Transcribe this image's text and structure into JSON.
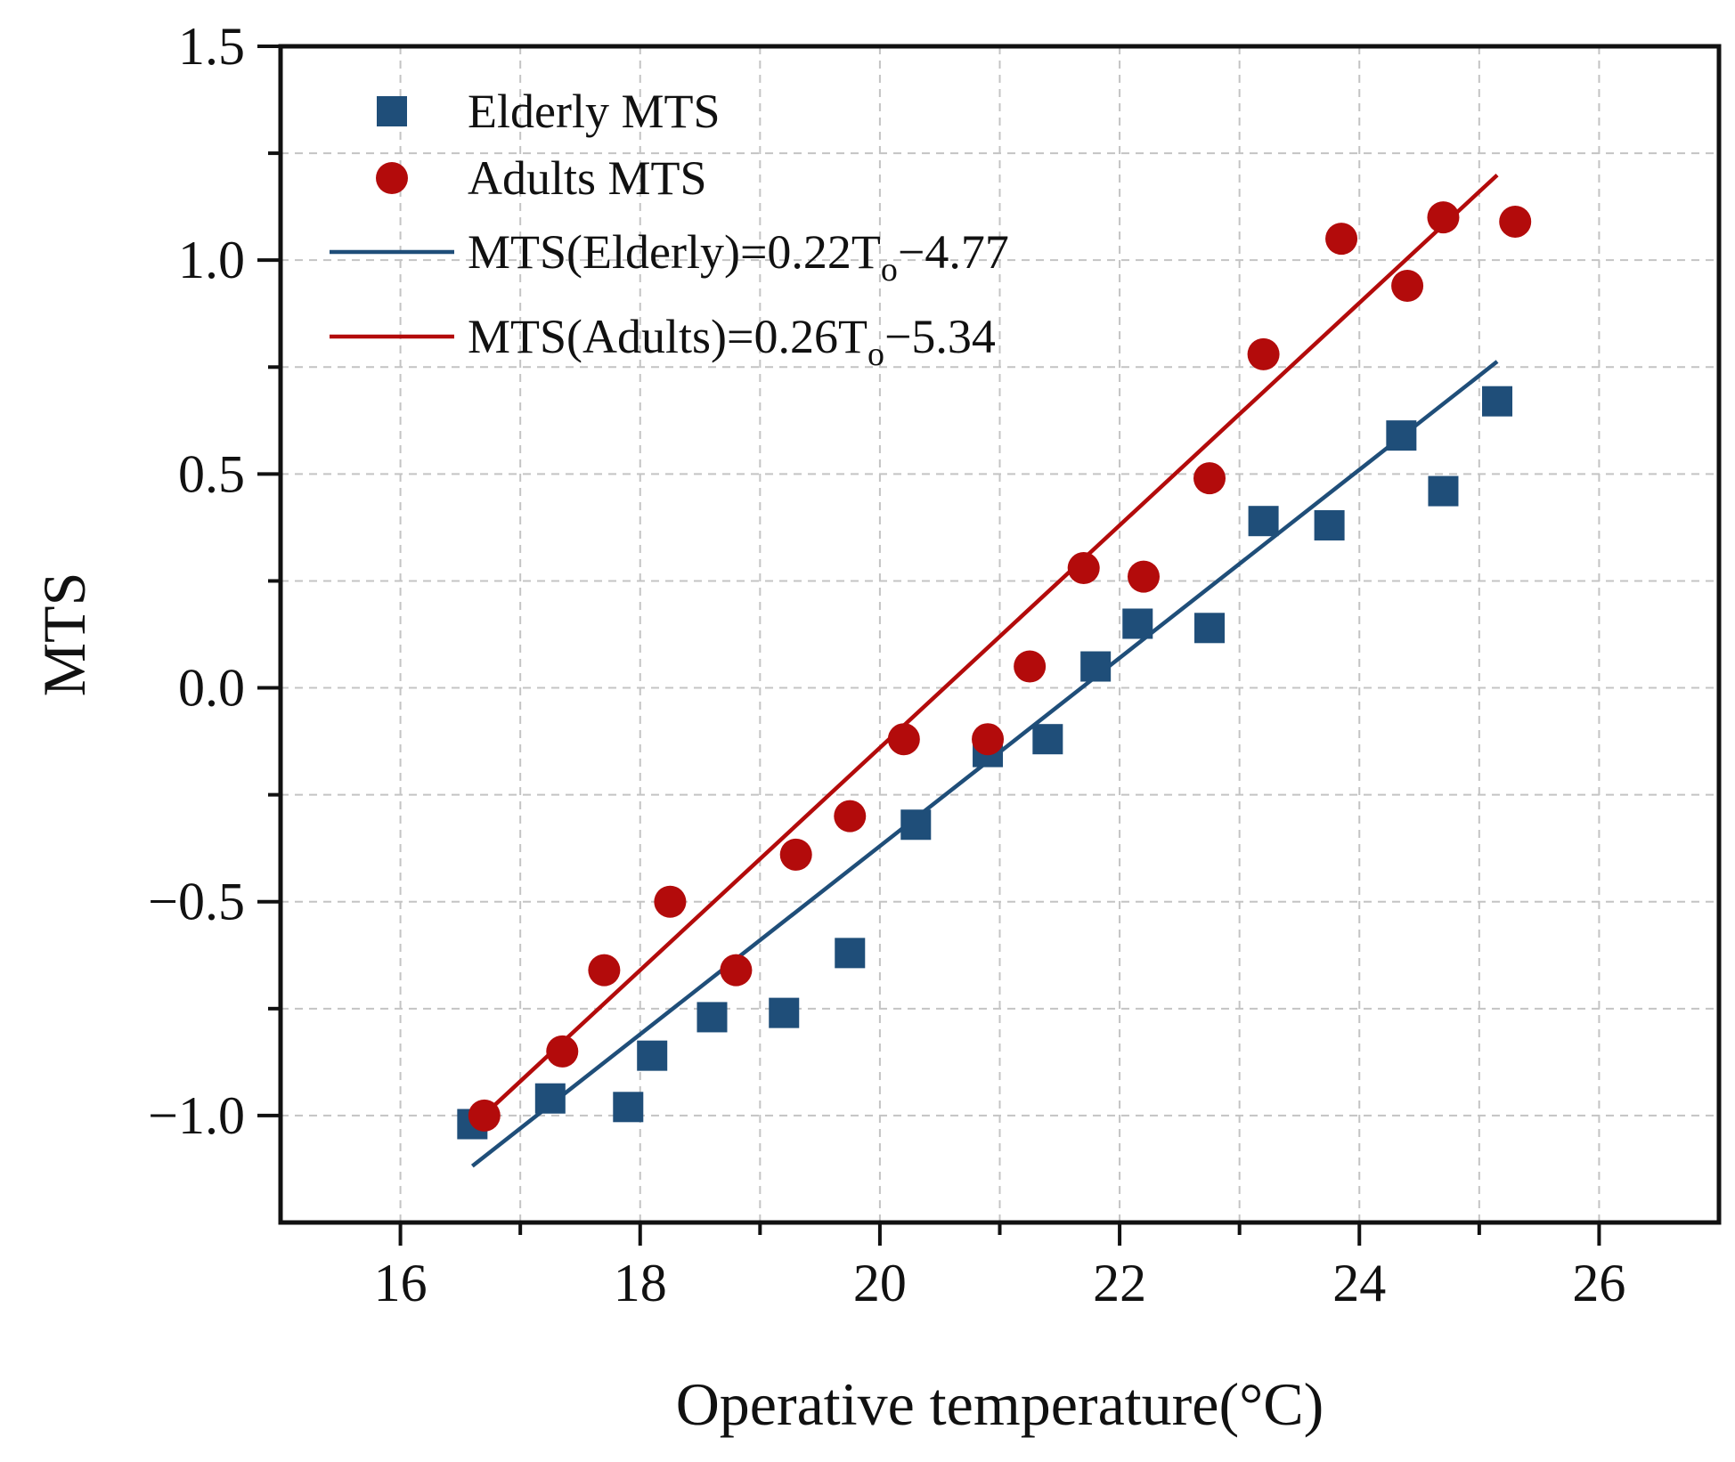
{
  "chart_data": {
    "type": "scatter",
    "title": "",
    "xlabel": "Operative temperature(°C)",
    "ylabel": "MTS",
    "xlim": [
      15,
      27
    ],
    "ylim": [
      -1.25,
      1.5
    ],
    "x_ticks": [
      16,
      18,
      20,
      22,
      24,
      26
    ],
    "x_tick_labels": [
      "16",
      "18",
      "20",
      "22",
      "24",
      "26"
    ],
    "y_ticks": [
      -1.0,
      -0.5,
      0.0,
      0.5,
      1.0,
      1.5
    ],
    "y_tick_labels": [
      "−1.0",
      "−0.5",
      "0.0",
      "0.5",
      "1.0",
      "1.5"
    ],
    "grid": true,
    "legend_position": "top-left",
    "series": [
      {
        "name": "Elderly MTS",
        "kind": "scatter",
        "marker": "square",
        "color": "#1f4e79",
        "points": [
          [
            16.6,
            -1.02
          ],
          [
            17.25,
            -0.96
          ],
          [
            17.9,
            -0.98
          ],
          [
            18.1,
            -0.86
          ],
          [
            18.6,
            -0.77
          ],
          [
            19.2,
            -0.76
          ],
          [
            19.75,
            -0.62
          ],
          [
            20.3,
            -0.32
          ],
          [
            20.9,
            -0.15
          ],
          [
            21.4,
            -0.12
          ],
          [
            21.8,
            0.05
          ],
          [
            22.15,
            0.15
          ],
          [
            22.75,
            0.14
          ],
          [
            23.2,
            0.39
          ],
          [
            23.75,
            0.38
          ],
          [
            24.35,
            0.59
          ],
          [
            24.7,
            0.46
          ],
          [
            25.15,
            0.67
          ]
        ]
      },
      {
        "name": "Adults MTS",
        "kind": "scatter",
        "marker": "circle",
        "color": "#b30b0b",
        "points": [
          [
            16.7,
            -1.0
          ],
          [
            17.35,
            -0.85
          ],
          [
            17.7,
            -0.66
          ],
          [
            18.25,
            -0.5
          ],
          [
            18.8,
            -0.66
          ],
          [
            19.3,
            -0.39
          ],
          [
            19.75,
            -0.3
          ],
          [
            20.2,
            -0.12
          ],
          [
            20.9,
            -0.12
          ],
          [
            21.25,
            0.05
          ],
          [
            21.7,
            0.28
          ],
          [
            22.2,
            0.26
          ],
          [
            22.75,
            0.49
          ],
          [
            23.2,
            0.78
          ],
          [
            23.85,
            1.05
          ],
          [
            24.4,
            0.94
          ],
          [
            24.7,
            1.1
          ],
          [
            25.3,
            1.09
          ]
        ]
      },
      {
        "name": "MTS(Elderly)=0.22T",
        "name_subscript": "o",
        "name_suffix": "−4.77",
        "kind": "fit_line",
        "color": "#1f4e79",
        "slope": 0.22,
        "intercept": -4.77,
        "x_range": [
          16.6,
          25.15
        ]
      },
      {
        "name": "MTS(Adults)=0.26T",
        "name_subscript": "o",
        "name_suffix": "−5.34",
        "kind": "fit_line",
        "color": "#b30b0b",
        "slope": 0.26,
        "intercept": -5.34,
        "x_range": [
          16.7,
          25.15
        ]
      }
    ]
  }
}
